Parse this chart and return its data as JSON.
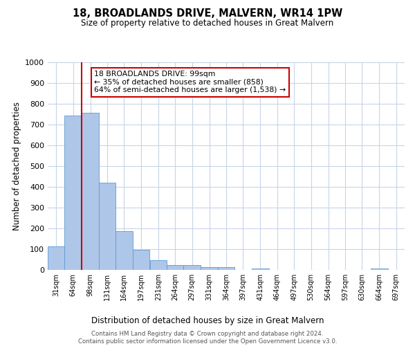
{
  "title": "18, BROADLANDS DRIVE, MALVERN, WR14 1PW",
  "subtitle": "Size of property relative to detached houses in Great Malvern",
  "bar_values": [
    113,
    743,
    756,
    420,
    188,
    97,
    46,
    23,
    23,
    15,
    15,
    0,
    8,
    0,
    0,
    0,
    0,
    0,
    0,
    8
  ],
  "bin_labels": [
    "31sqm",
    "64sqm",
    "98sqm",
    "131sqm",
    "164sqm",
    "197sqm",
    "231sqm",
    "264sqm",
    "297sqm",
    "331sqm",
    "364sqm",
    "397sqm",
    "431sqm",
    "464sqm",
    "497sqm",
    "530sqm",
    "564sqm",
    "597sqm",
    "630sqm",
    "664sqm",
    "697sqm"
  ],
  "bin_edges": [
    31,
    64,
    98,
    131,
    164,
    197,
    231,
    264,
    297,
    331,
    364,
    397,
    431,
    464,
    497,
    530,
    564,
    597,
    630,
    664,
    697
  ],
  "bar_color": "#AEC6E8",
  "bar_edge_color": "#5B9BD5",
  "ylabel": "Number of detached properties",
  "xlabel": "Distribution of detached houses by size in Great Malvern",
  "ylim": [
    0,
    1000
  ],
  "yticks": [
    0,
    100,
    200,
    300,
    400,
    500,
    600,
    700,
    800,
    900,
    1000
  ],
  "vline_x": 98,
  "vline_color": "#CC0000",
  "annotation_line1": "18 BROADLANDS DRIVE: 99sqm",
  "annotation_line2": "← 35% of detached houses are smaller (858)",
  "annotation_line3": "64% of semi-detached houses are larger (1,538) →",
  "annotation_box_color": "#CC0000",
  "footer_line1": "Contains HM Land Registry data © Crown copyright and database right 2024.",
  "footer_line2": "Contains public sector information licensed under the Open Government Licence v3.0.",
  "background_color": "#FFFFFF",
  "grid_color": "#C8D4E8"
}
